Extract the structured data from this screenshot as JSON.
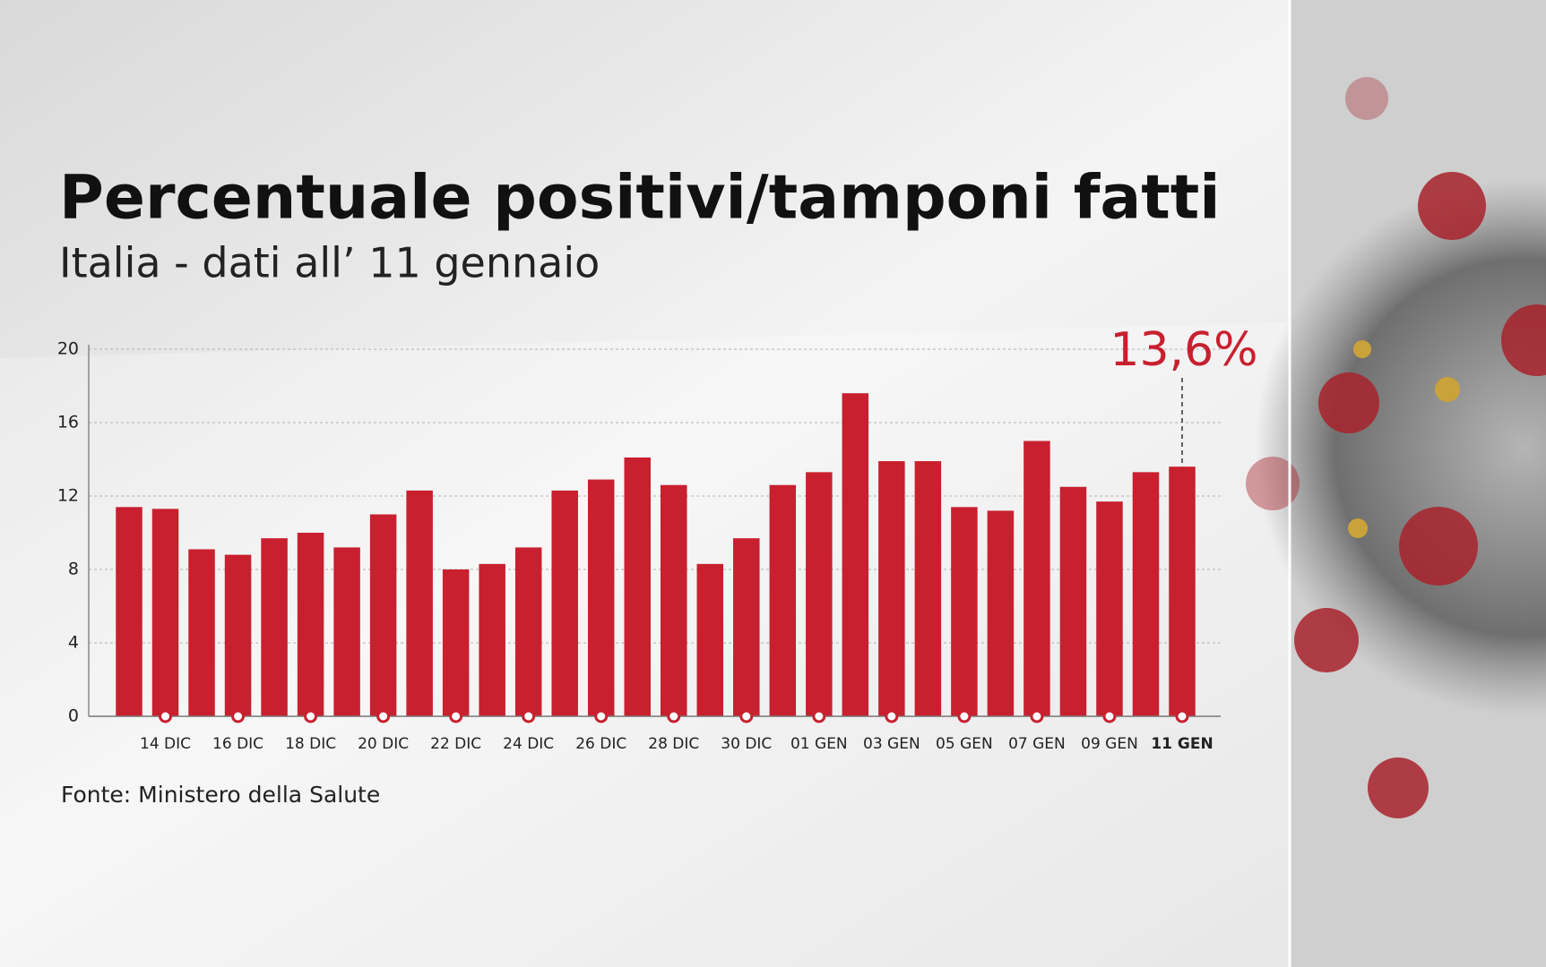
{
  "chart_data": {
    "type": "bar",
    "title": "Percentuale positivi/tamponi fatti",
    "subtitle": "Italia - dati all’ 11 gennaio",
    "source": "Fonte: Ministero della Salute",
    "categories": [
      null,
      "14 DIC",
      null,
      "16 DIC",
      null,
      "18 DIC",
      null,
      "20 DIC",
      null,
      "22 DIC",
      null,
      "24 DIC",
      null,
      "26 DIC",
      null,
      "28 DIC",
      null,
      "30 DIC",
      null,
      "01 GEN",
      null,
      "03 GEN",
      null,
      "05 GEN",
      null,
      "07 GEN",
      null,
      "09 GEN",
      null,
      "11 GEN"
    ],
    "values": [
      11.4,
      11.3,
      9.1,
      8.8,
      9.7,
      10.0,
      9.2,
      11.0,
      12.3,
      8.0,
      8.3,
      9.2,
      12.3,
      12.9,
      14.1,
      12.6,
      8.3,
      9.7,
      12.6,
      13.3,
      17.6,
      13.9,
      13.9,
      11.4,
      11.2,
      15.0,
      12.5,
      11.7,
      13.3,
      13.6
    ],
    "value_labels": [
      null,
      null,
      null,
      null,
      null,
      null,
      null,
      null,
      null,
      null,
      null,
      null,
      null,
      null,
      null,
      null,
      null,
      null,
      null,
      null,
      null,
      null,
      null,
      null,
      null,
      null,
      null,
      null,
      null,
      "13,6%"
    ],
    "color": "#c8202f",
    "ylim": [
      0,
      20
    ],
    "yticks": [
      0,
      4,
      8,
      12,
      16,
      20
    ],
    "grid": true
  }
}
